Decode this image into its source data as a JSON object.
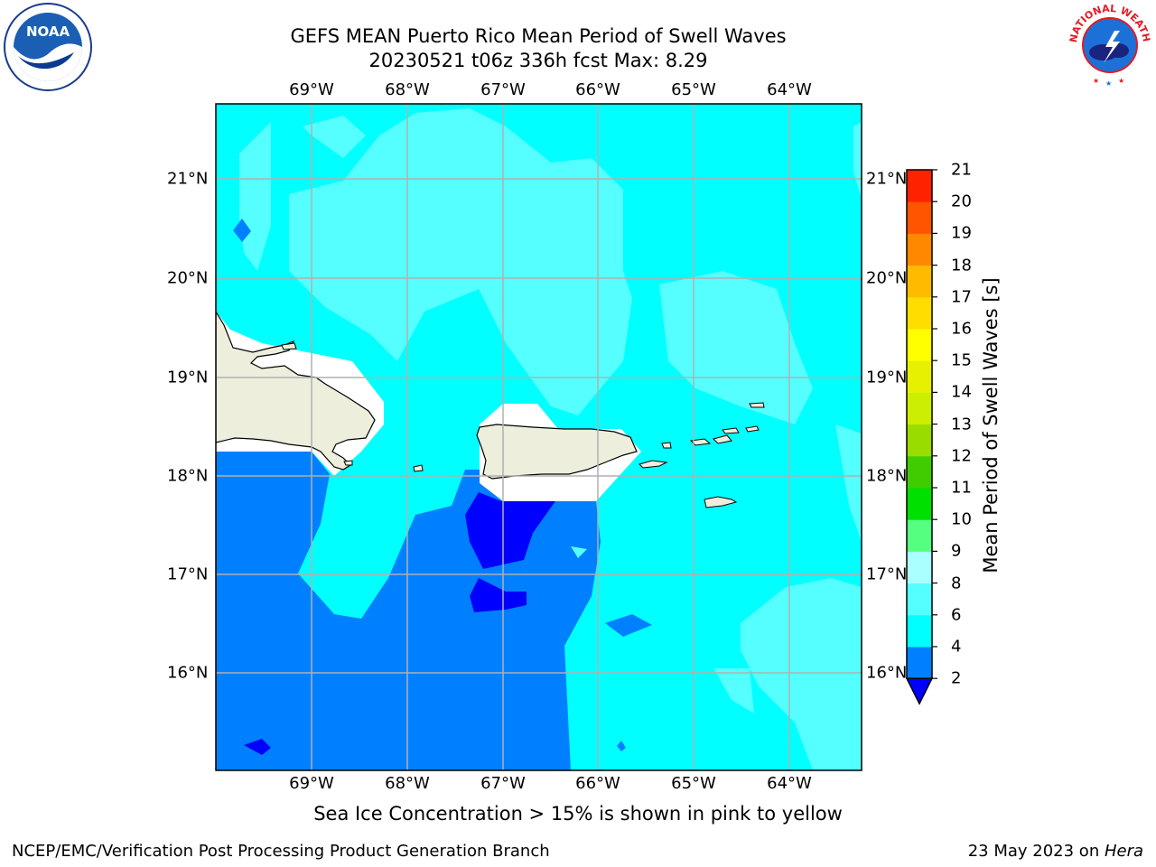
{
  "title_line1": "GEFS MEAN Puerto Rico Mean Period of Swell Waves",
  "title_line2": "20230521 t06z 336h fcst   Max: 8.29",
  "subtitle": "Sea Ice Concentration > 15% is shown in pink to yellow",
  "footer_left": "NCEP/EMC/Verification Post Processing Product Generation Branch",
  "footer_right_date": "23 May 2023 on ",
  "footer_right_machine": "Hera",
  "lon_labels": [
    "69°W",
    "68°W",
    "67°W",
    "66°W",
    "65°W",
    "64°W"
  ],
  "lat_labels": [
    "21°N",
    "20°N",
    "19°N",
    "18°N",
    "17°N",
    "16°N"
  ],
  "colorbar": {
    "label": "Mean Period of Swell Waves [s]",
    "ticks": [
      "2",
      "4",
      "6",
      "8",
      "9",
      "10",
      "11",
      "12",
      "13",
      "14",
      "15",
      "16",
      "17",
      "18",
      "19",
      "20",
      "21"
    ],
    "colors": [
      "#0080ff",
      "#00ffff",
      "#55ffff",
      "#aaffff",
      "#55ff80",
      "#00e000",
      "#40cc00",
      "#99dd00",
      "#ccee00",
      "#e6f000",
      "#ffff00",
      "#ffdd00",
      "#ffbb00",
      "#ff8800",
      "#ff5500",
      "#ff2200"
    ],
    "under_color": "#0000ff"
  },
  "colors": {
    "deep": "#0000ff",
    "blue": "#0080ff",
    "cyan": "#00ffff",
    "light_cyan": "#55ffff",
    "land": "#eeeedd",
    "grid": "#b0b0b0"
  },
  "logos": {
    "left": "noaa-logo",
    "right": "national-weather-service-logo",
    "right_text": "NATIONAL WEATHER SERVICE"
  }
}
